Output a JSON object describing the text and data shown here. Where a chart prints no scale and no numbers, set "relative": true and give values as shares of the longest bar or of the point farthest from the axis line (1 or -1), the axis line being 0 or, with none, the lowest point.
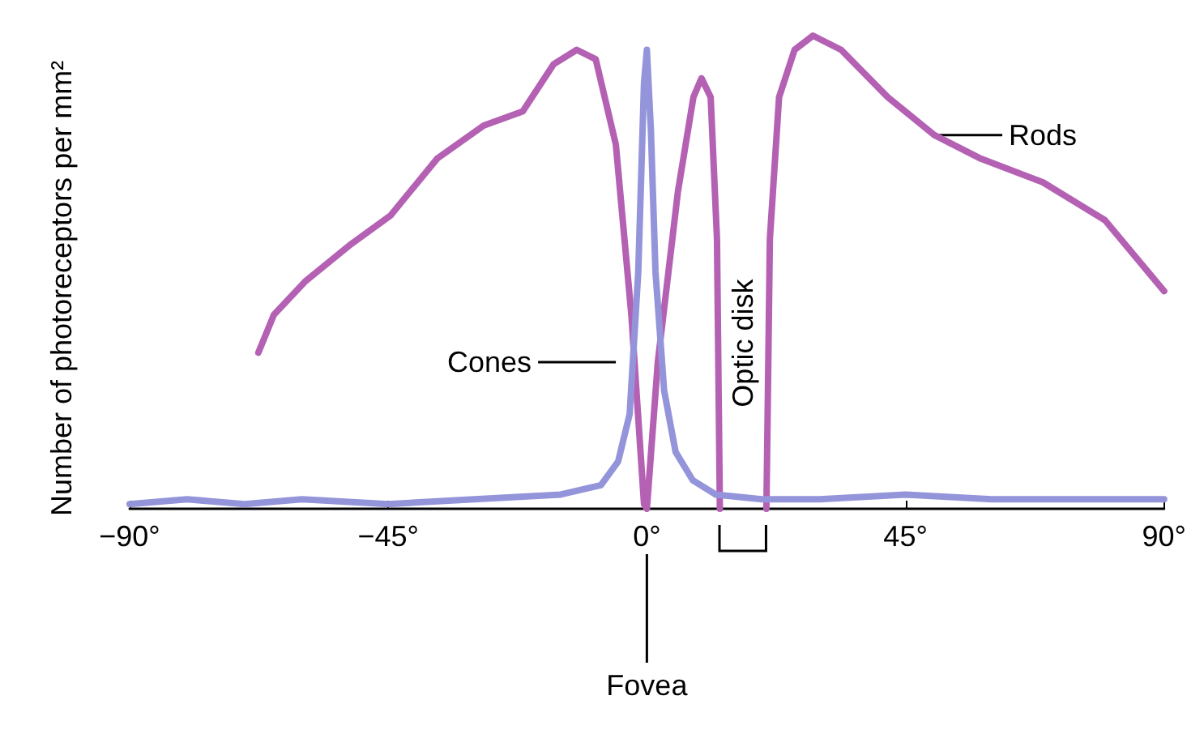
{
  "chart_data": {
    "type": "line",
    "relative": true,
    "ylabel": "Number of photoreceptors per mm²",
    "grid": false,
    "marker": "none",
    "line_style": "solid",
    "xlim": [
      -90,
      90
    ],
    "xticks": [
      {
        "value": -90,
        "label": "−90°"
      },
      {
        "value": -45,
        "label": "−45°"
      },
      {
        "value": 0,
        "label": "0°"
      },
      {
        "value": 45,
        "label": "45°"
      },
      {
        "value": 90,
        "label": "90°"
      }
    ],
    "series": [
      {
        "color": "#b461b4",
        "x": [
          -67.6,
          -64.9,
          -59.5,
          -51.4,
          -44.6,
          -36.5,
          -28.4,
          -21.6,
          -16.2,
          -12.2,
          -8.9,
          -5.4,
          -2.7,
          -0.5,
          0,
          1.9,
          5.4,
          8.1,
          9.5,
          11.1,
          12.2,
          12.7,
          16.7,
          20.8,
          21.4,
          23,
          25.7,
          28.9,
          33.8,
          41.9,
          50,
          58.1,
          68.9,
          79.7,
          90
        ],
        "values": [
          0.33,
          0.41,
          0.48,
          0.56,
          0.62,
          0.74,
          0.81,
          0.84,
          0.94,
          0.97,
          0.95,
          0.77,
          0.41,
          0.01,
          0,
          0.31,
          0.67,
          0.87,
          0.91,
          0.87,
          0.57,
          0,
          null,
          0,
          0.57,
          0.87,
          0.97,
          1,
          0.97,
          0.87,
          0.79,
          0.74,
          0.69,
          0.61,
          0.46
        ]
      },
      {
        "color": "#9494db",
        "x": [
          -90,
          -80,
          -70,
          -60,
          -45,
          -30,
          -15,
          -8,
          -5,
          -3,
          -1.5,
          -0.5,
          0,
          0.7,
          1.5,
          3,
          5,
          8,
          12,
          20,
          30,
          45,
          60,
          75,
          90
        ],
        "values": [
          0.01,
          0.02,
          0.01,
          0.02,
          0.01,
          0.02,
          0.03,
          0.05,
          0.1,
          0.2,
          0.5,
          0.9,
          0.97,
          0.8,
          0.5,
          0.25,
          0.12,
          0.06,
          0.03,
          0.02,
          0.02,
          0.03,
          0.02,
          0.02,
          0.02
        ]
      }
    ],
    "annotations": [
      "Cones",
      {
        "text": "Rods",
        "x": 50,
        "y": 0.79
      },
      "Optic disk",
      "Fovea"
    ]
  }
}
